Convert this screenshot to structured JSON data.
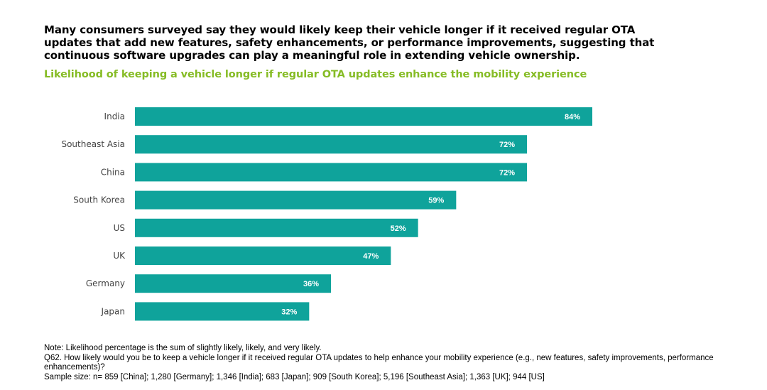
{
  "headline": "Many consumers surveyed say they would likely keep their vehicle longer if it received regular OTA updates that add new features, safety enhancements, or performance improvements, suggesting that continuous software upgrades can play a meaningful role in extending vehicle ownership.",
  "colors": {
    "bar": "#0fa39b",
    "subtitle": "#86bc25",
    "category_label": "#444444",
    "value_label": "#ffffff"
  },
  "chart_data": {
    "type": "bar",
    "orientation": "horizontal",
    "title": "Likelihood of keeping a vehicle longer if regular OTA updates enhance the mobility experience",
    "categories": [
      "India",
      "Southeast Asia",
      "China",
      "South Korea",
      "US",
      "UK",
      "Germany",
      "Japan"
    ],
    "values": [
      84,
      72,
      72,
      59,
      52,
      47,
      36,
      32
    ],
    "value_labels": [
      "84%",
      "72%",
      "72%",
      "59%",
      "52%",
      "47%",
      "36%",
      "32%"
    ],
    "xlim": [
      0,
      100
    ],
    "grid": false,
    "legend": "none"
  },
  "notes": {
    "note": "Note: Likelihood percentage is the sum of slightly likely, likely, and very likely.",
    "question": "Q62. How likely would you be to keep a vehicle longer if it received regular OTA updates to help enhance your mobility experience (e.g., new features, safety improvements, performance enhancements)?",
    "sample": "Sample size: n= 859 [China]; 1,280 [Germany]; 1,346 [India]; 683 [Japan]; 909 [South Korea]; 5,196 [Southeast Asia]; 1,363 [UK]; 944 [US]"
  }
}
